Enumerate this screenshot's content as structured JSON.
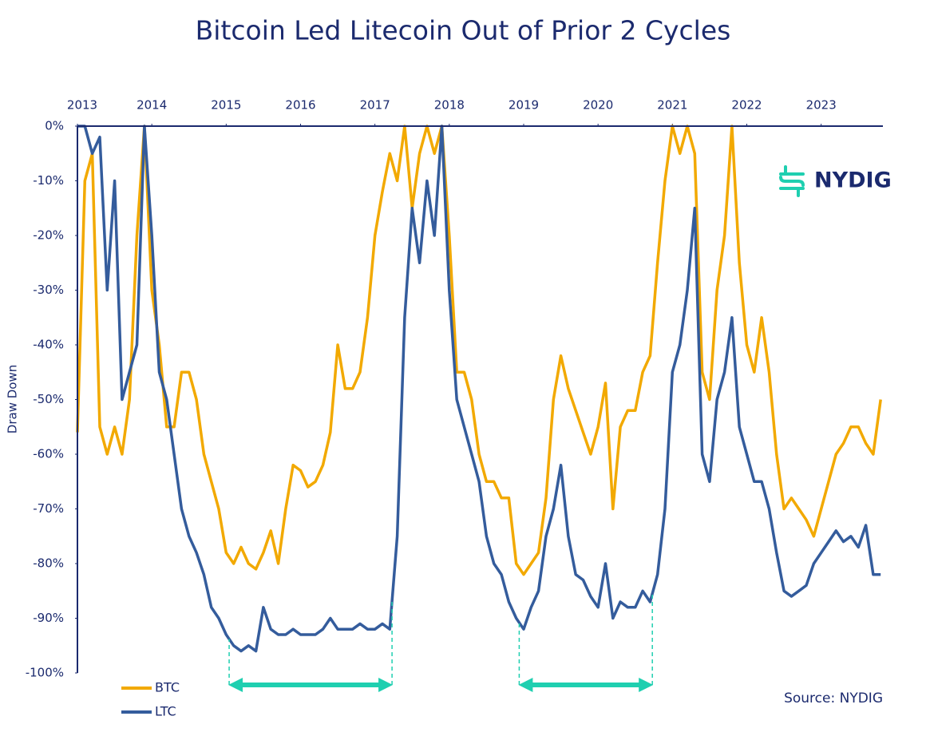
{
  "chart_data": {
    "type": "line",
    "title": "Bitcoin Led Litecoin Out of Prior 2 Cycles",
    "y_label": "Draw Down",
    "source": "Source: NYDIG",
    "logo": "NYDIG",
    "xlim": [
      2013,
      2023.83
    ],
    "xticks": [
      2013,
      2014,
      2015,
      2016,
      2017,
      2018,
      2019,
      2020,
      2021,
      2022,
      2023
    ],
    "ylim": [
      -100,
      0
    ],
    "yticks": [
      {
        "value": 0,
        "label": "0%"
      },
      {
        "value": -10,
        "label": "-10%"
      },
      {
        "value": -20,
        "label": "-20%"
      },
      {
        "value": -30,
        "label": "-30%"
      },
      {
        "value": -40,
        "label": "-40%"
      },
      {
        "value": -50,
        "label": "-50%"
      },
      {
        "value": -60,
        "label": "-60%"
      },
      {
        "value": -70,
        "label": "-70%"
      },
      {
        "value": -80,
        "label": "-80%"
      },
      {
        "value": -90,
        "label": "-90%"
      },
      {
        "value": -100,
        "label": "-100%"
      }
    ],
    "grid": false,
    "legend": "bottom-left",
    "highlight_ranges": [
      [
        2015.04,
        2017.23
      ],
      [
        2018.94,
        2020.73
      ]
    ],
    "highlight_color": "#1fcfb0",
    "x": [
      2013.0,
      2013.1,
      2013.2,
      2013.3,
      2013.4,
      2013.5,
      2013.6,
      2013.7,
      2013.8,
      2013.9,
      2014.0,
      2014.1,
      2014.2,
      2014.3,
      2014.4,
      2014.5,
      2014.6,
      2014.7,
      2014.8,
      2014.9,
      2015.0,
      2015.1,
      2015.2,
      2015.3,
      2015.4,
      2015.5,
      2015.6,
      2015.7,
      2015.8,
      2015.9,
      2016.0,
      2016.1,
      2016.2,
      2016.3,
      2016.4,
      2016.5,
      2016.6,
      2016.7,
      2016.8,
      2016.9,
      2017.0,
      2017.1,
      2017.2,
      2017.3,
      2017.4,
      2017.5,
      2017.6,
      2017.7,
      2017.8,
      2017.9,
      2018.0,
      2018.1,
      2018.2,
      2018.3,
      2018.4,
      2018.5,
      2018.6,
      2018.7,
      2018.8,
      2018.9,
      2019.0,
      2019.1,
      2019.2,
      2019.3,
      2019.4,
      2019.5,
      2019.6,
      2019.7,
      2019.8,
      2019.9,
      2020.0,
      2020.1,
      2020.2,
      2020.3,
      2020.4,
      2020.5,
      2020.6,
      2020.7,
      2020.8,
      2020.9,
      2021.0,
      2021.1,
      2021.2,
      2021.3,
      2021.4,
      2021.5,
      2021.6,
      2021.7,
      2021.8,
      2021.9,
      2022.0,
      2022.1,
      2022.2,
      2022.3,
      2022.4,
      2022.5,
      2022.6,
      2022.7,
      2022.8,
      2022.9,
      2023.0,
      2023.1,
      2023.2,
      2023.3,
      2023.4,
      2023.5,
      2023.6,
      2023.7,
      2023.8
    ],
    "series": [
      {
        "name": "BTC",
        "color": "#f2a900",
        "values": [
          -56,
          -10,
          -5,
          -55,
          -60,
          -55,
          -60,
          -50,
          -20,
          0,
          -30,
          -40,
          -55,
          -55,
          -45,
          -45,
          -50,
          -60,
          -65,
          -70,
          -78,
          -80,
          -77,
          -80,
          -81,
          -78,
          -74,
          -80,
          -70,
          -62,
          -63,
          -66,
          -65,
          -62,
          -56,
          -40,
          -48,
          -48,
          -45,
          -35,
          -20,
          -12,
          -5,
          -10,
          0,
          -15,
          -5,
          0,
          -5,
          0,
          -20,
          -45,
          -45,
          -50,
          -60,
          -65,
          -65,
          -68,
          -68,
          -80,
          -82,
          -80,
          -78,
          -68,
          -50,
          -42,
          -48,
          -52,
          -56,
          -60,
          -55,
          -47,
          -70,
          -55,
          -52,
          -52,
          -45,
          -42,
          -25,
          -10,
          0,
          -5,
          0,
          -5,
          -45,
          -50,
          -30,
          -20,
          0,
          -25,
          -40,
          -45,
          -35,
          -45,
          -60,
          -70,
          -68,
          -70,
          -72,
          -75,
          -70,
          -65,
          -60,
          -58,
          -55,
          -55,
          -58,
          -60,
          -50
        ]
      },
      {
        "name": "LTC",
        "color": "#345c9c",
        "values": [
          0,
          0,
          -5,
          -2,
          -30,
          -10,
          -50,
          -45,
          -40,
          0,
          -20,
          -45,
          -50,
          -60,
          -70,
          -75,
          -78,
          -82,
          -88,
          -90,
          -93,
          -95,
          -96,
          -95,
          -96,
          -88,
          -92,
          -93,
          -93,
          -92,
          -93,
          -93,
          -93,
          -92,
          -90,
          -92,
          -92,
          -92,
          -91,
          -92,
          -92,
          -91,
          -92,
          -75,
          -35,
          -15,
          -25,
          -10,
          -20,
          0,
          -30,
          -50,
          -55,
          -60,
          -65,
          -75,
          -80,
          -82,
          -87,
          -90,
          -92,
          -88,
          -85,
          -75,
          -70,
          -62,
          -75,
          -82,
          -83,
          -86,
          -88,
          -80,
          -90,
          -87,
          -88,
          -88,
          -85,
          -87,
          -82,
          -70,
          -45,
          -40,
          -30,
          -15,
          -60,
          -65,
          -50,
          -45,
          -35,
          -55,
          -60,
          -65,
          -65,
          -70,
          -78,
          -85,
          -86,
          -85,
          -84,
          -80,
          -78,
          -76,
          -74,
          -76,
          -75,
          -77,
          -73,
          -82,
          -82
        ]
      }
    ]
  }
}
